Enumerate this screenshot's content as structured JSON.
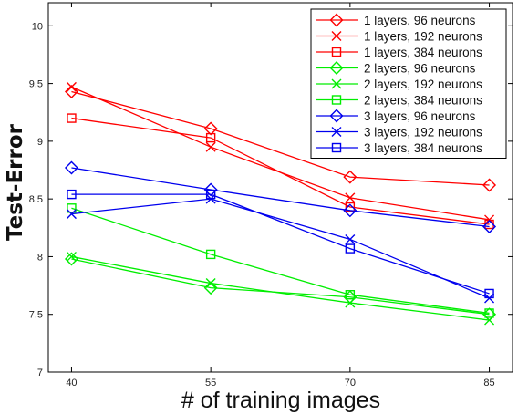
{
  "chart_data": {
    "type": "line",
    "title": "",
    "xlabel": "# of training images",
    "ylabel": "Test-Error",
    "x": [
      40,
      55,
      70,
      85
    ],
    "x_ticks": [
      "40",
      "55",
      "70",
      "85"
    ],
    "xlim": [
      37.5,
      87.5
    ],
    "ylim": [
      7,
      10.2
    ],
    "y_ticks": [
      "7",
      "7.5",
      "8",
      "8.5",
      "9",
      "9.5",
      "10"
    ],
    "grid": false,
    "legend_position": "top-right",
    "series": [
      {
        "name": "1 layers, 96 neurons",
        "color": "#ff0000",
        "marker": "diamond",
        "values": [
          9.43,
          9.11,
          8.69,
          8.62
        ]
      },
      {
        "name": "1 layers, 192 neurons",
        "color": "#ff0000",
        "marker": "x",
        "values": [
          9.47,
          8.95,
          8.51,
          8.32
        ]
      },
      {
        "name": "1 layers, 384 neurons",
        "color": "#ff0000",
        "marker": "square",
        "values": [
          9.2,
          9.03,
          8.43,
          8.28
        ]
      },
      {
        "name": "2 layers, 96 neurons",
        "color": "#00ee00",
        "marker": "diamond",
        "values": [
          7.98,
          7.73,
          7.65,
          7.5
        ]
      },
      {
        "name": "2 layers, 192 neurons",
        "color": "#00ee00",
        "marker": "x",
        "values": [
          8.0,
          7.77,
          7.6,
          7.45
        ]
      },
      {
        "name": "2 layers, 384 neurons",
        "color": "#00ee00",
        "marker": "square",
        "values": [
          8.42,
          8.02,
          7.67,
          7.51
        ]
      },
      {
        "name": "3 layers, 96 neurons",
        "color": "#0000ee",
        "marker": "diamond",
        "values": [
          8.77,
          8.58,
          8.4,
          8.26
        ]
      },
      {
        "name": "3 layers, 192 neurons",
        "color": "#0000ee",
        "marker": "x",
        "values": [
          8.37,
          8.5,
          8.15,
          7.64
        ]
      },
      {
        "name": "3 layers, 384 neurons",
        "color": "#0000ee",
        "marker": "square",
        "values": [
          8.54,
          8.54,
          8.07,
          7.68
        ]
      }
    ]
  }
}
